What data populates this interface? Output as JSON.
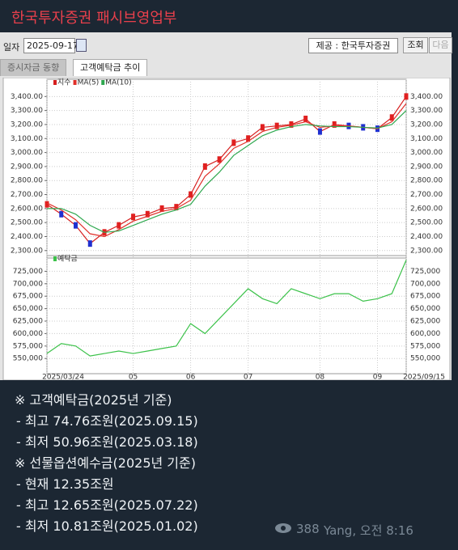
{
  "header": {
    "title": "한국투자증권 패시브영업부"
  },
  "toolbar": {
    "date_label": "일자",
    "date": "2025-09-17",
    "source": "제공 : 한국투자증권",
    "buttons": [
      "조회",
      "다음"
    ]
  },
  "tabs": [
    "증시자금 동향",
    "고객예탁금 추이"
  ],
  "chart_data": [
    {
      "type": "line",
      "series": [
        {
          "name": "지수",
          "color": "#d61f1f",
          "values": [
            2630,
            2560,
            2480,
            2350,
            2430,
            2480,
            2540,
            2560,
            2600,
            2610,
            2700,
            2900,
            2950,
            3070,
            3100,
            3180,
            3190,
            3200,
            3240,
            3150,
            3200,
            3190,
            3180,
            3170,
            3250,
            3400
          ]
        },
        {
          "name": "MA(5)",
          "color": "#e0302a",
          "values": [
            2640,
            2590,
            2520,
            2420,
            2400,
            2450,
            2510,
            2545,
            2580,
            2600,
            2660,
            2830,
            2920,
            3030,
            3080,
            3150,
            3180,
            3195,
            3220,
            3180,
            3190,
            3190,
            3180,
            3170,
            3220,
            3350
          ]
        },
        {
          "name": "MA(10)",
          "color": "#2fa84f",
          "values": [
            2600,
            2600,
            2560,
            2480,
            2430,
            2440,
            2480,
            2520,
            2560,
            2590,
            2630,
            2760,
            2860,
            2980,
            3050,
            3120,
            3160,
            3185,
            3200,
            3190,
            3185,
            3185,
            3180,
            3175,
            3200,
            3300
          ]
        }
      ],
      "ylim": [
        2270,
        3500
      ],
      "yticks": [
        {
          "value": 2300,
          "label": "2,300.00"
        },
        {
          "value": 2400,
          "label": "2,400.00"
        },
        {
          "value": 2500,
          "label": "2,500.00"
        },
        {
          "value": 2600,
          "label": "2,600.00"
        },
        {
          "value": 2700,
          "label": "2,700.00"
        },
        {
          "value": 2800,
          "label": "2,800.00"
        },
        {
          "value": 2900,
          "label": "2,900.00"
        },
        {
          "value": 3000,
          "label": "3,000.00"
        },
        {
          "value": 3100,
          "label": "3,100.00"
        },
        {
          "value": 3200,
          "label": "3,200.00"
        },
        {
          "value": 3300,
          "label": "3,300.00"
        },
        {
          "value": 3400,
          "label": "3,400.00"
        }
      ],
      "grid": true
    },
    {
      "type": "line",
      "categories": [
        "2025/03/24",
        null,
        null,
        null,
        null,
        null,
        "05",
        null,
        null,
        null,
        "06",
        null,
        null,
        null,
        "07",
        null,
        null,
        null,
        null,
        "08",
        null,
        null,
        null,
        "09",
        null,
        "2025/09/15"
      ],
      "series": [
        {
          "name": "예탁금",
          "color": "#3cc24a",
          "values": [
            560000,
            580000,
            575000,
            555000,
            560000,
            565000,
            560000,
            565000,
            570000,
            575000,
            620000,
            600000,
            630000,
            660000,
            690000,
            670000,
            660000,
            690000,
            680000,
            670000,
            680000,
            680000,
            665000,
            670000,
            680000,
            747600
          ]
        }
      ],
      "ylim": [
        526000,
        750000
      ],
      "yticks": [
        {
          "value": 550000,
          "label": "550,000"
        },
        {
          "value": 575000,
          "label": "575,000"
        },
        {
          "value": 600000,
          "label": "600,000"
        },
        {
          "value": 625000,
          "label": "625,000"
        },
        {
          "value": 650000,
          "label": "650,000"
        },
        {
          "value": 675000,
          "label": "675,000"
        },
        {
          "value": 700000,
          "label": "700,000"
        },
        {
          "value": 725000,
          "label": "725,000"
        }
      ],
      "grid": true
    }
  ],
  "message": {
    "lines": [
      "※ 고객예탁금(2025년 기준)",
      "- 최고 74.76조원(2025.09.15)",
      "- 최저 50.96조원(2025.03.18)",
      "※ 선물옵션예수금(2025년 기준)",
      "- 현재 12.35조원",
      "- 최고 12.65조원(2025.07.22)",
      "- 최저 10.81조원(2025.01.02)"
    ]
  },
  "footer": {
    "views": 388,
    "author": "Yang, 오전 8:16"
  }
}
